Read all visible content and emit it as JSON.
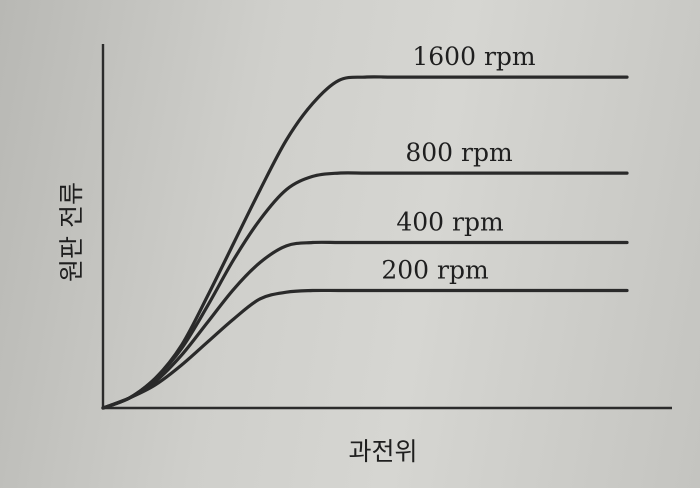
{
  "chart_data": {
    "type": "line",
    "xlabel": "과전위",
    "ylabel": "원판 전류",
    "x": [
      0,
      0.05,
      0.1,
      0.15,
      0.2,
      0.25,
      0.3,
      0.35,
      0.4,
      0.45,
      0.5,
      0.55,
      0.6,
      0.65,
      0.7,
      0.75,
      0.8,
      0.85,
      0.9,
      0.95,
      1.0
    ],
    "series": [
      {
        "name": "1600 rpm",
        "values": [
          0,
          0.03,
          0.09,
          0.19,
          0.34,
          0.5,
          0.66,
          0.81,
          0.92,
          0.99,
          1.0,
          1.0,
          1.0,
          1.0,
          1.0,
          1.0,
          1.0,
          1.0,
          1.0,
          1.0,
          1.0
        ]
      },
      {
        "name": "800 rpm",
        "values": [
          0,
          0.03,
          0.09,
          0.18,
          0.31,
          0.45,
          0.57,
          0.66,
          0.7,
          0.71,
          0.71,
          0.71,
          0.71,
          0.71,
          0.71,
          0.71,
          0.71,
          0.71,
          0.71,
          0.71,
          0.71
        ]
      },
      {
        "name": "400 rpm",
        "values": [
          0,
          0.03,
          0.08,
          0.16,
          0.26,
          0.36,
          0.44,
          0.49,
          0.5,
          0.5,
          0.5,
          0.5,
          0.5,
          0.5,
          0.5,
          0.5,
          0.5,
          0.5,
          0.5,
          0.5,
          0.5
        ]
      },
      {
        "name": "200 rpm",
        "values": [
          0,
          0.03,
          0.07,
          0.13,
          0.2,
          0.27,
          0.33,
          0.35,
          0.355,
          0.355,
          0.355,
          0.355,
          0.355,
          0.355,
          0.355,
          0.355,
          0.355,
          0.355,
          0.355,
          0.355,
          0.355
        ]
      }
    ],
    "xlim": [
      0,
      1
    ],
    "ylim": [
      0,
      1.1
    ],
    "grid": false,
    "legend": "inline labels above curves"
  }
}
